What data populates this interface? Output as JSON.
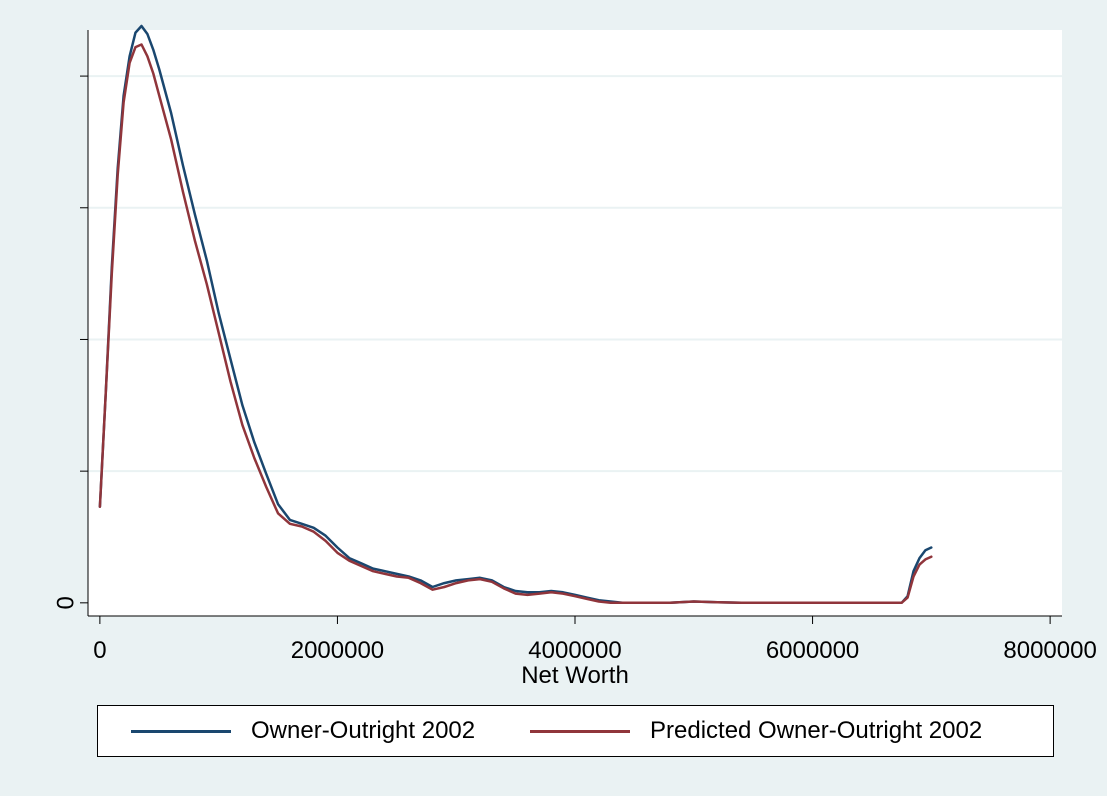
{
  "chart_data": {
    "type": "line",
    "xlabel": "Net Worth",
    "ylabel": "",
    "xlim": [
      -100000,
      8100000
    ],
    "ylim": [
      -0.1,
      4.35
    ],
    "x_ticks": [
      0,
      2000000,
      4000000,
      6000000,
      8000000
    ],
    "x_tick_labels": [
      "0",
      "2000000",
      "4000000",
      "6000000",
      "8000000"
    ],
    "y_ticks": [
      0,
      1,
      2,
      3,
      4
    ],
    "y_tick_labels": [
      "0",
      "",
      "",
      "",
      ""
    ],
    "grid": "horizontal",
    "legend_position": "bottom",
    "series": [
      {
        "name": "Owner-Outright 2002",
        "color": "#1a476f",
        "x": [
          0,
          50000,
          100000,
          150000,
          200000,
          250000,
          300000,
          350000,
          400000,
          450000,
          500000,
          600000,
          700000,
          800000,
          900000,
          1000000,
          1100000,
          1200000,
          1300000,
          1400000,
          1500000,
          1600000,
          1700000,
          1800000,
          1900000,
          2000000,
          2100000,
          2200000,
          2300000,
          2400000,
          2500000,
          2600000,
          2700000,
          2800000,
          2900000,
          3000000,
          3100000,
          3200000,
          3300000,
          3400000,
          3500000,
          3600000,
          3700000,
          3800000,
          3900000,
          4000000,
          4100000,
          4200000,
          4300000,
          4400000,
          4600000,
          4800000,
          5000000,
          5200000,
          5400000,
          5600000,
          5800000,
          6000000,
          6200000,
          6400000,
          6600000,
          6700000,
          6750000,
          6800000,
          6850000,
          6900000,
          6950000,
          7000000
        ],
        "values": [
          0.73,
          1.6,
          2.55,
          3.3,
          3.85,
          4.15,
          4.33,
          4.38,
          4.32,
          4.2,
          4.05,
          3.72,
          3.32,
          2.95,
          2.6,
          2.2,
          1.85,
          1.5,
          1.22,
          0.98,
          0.75,
          0.63,
          0.6,
          0.57,
          0.51,
          0.42,
          0.34,
          0.3,
          0.26,
          0.24,
          0.22,
          0.2,
          0.17,
          0.12,
          0.15,
          0.17,
          0.18,
          0.19,
          0.17,
          0.12,
          0.09,
          0.08,
          0.08,
          0.09,
          0.08,
          0.06,
          0.04,
          0.02,
          0.01,
          0.0,
          0.0,
          0.0,
          0.01,
          0.005,
          0.0,
          0.0,
          0.0,
          0.0,
          0.0,
          0.0,
          0.0,
          0.0,
          0.0,
          0.05,
          0.24,
          0.34,
          0.4,
          0.42
        ]
      },
      {
        "name": "Predicted Owner-Outright 2002",
        "color": "#90353b",
        "x": [
          0,
          50000,
          100000,
          150000,
          200000,
          250000,
          300000,
          350000,
          400000,
          450000,
          500000,
          600000,
          700000,
          800000,
          900000,
          1000000,
          1100000,
          1200000,
          1300000,
          1400000,
          1500000,
          1600000,
          1700000,
          1800000,
          1900000,
          2000000,
          2100000,
          2200000,
          2300000,
          2400000,
          2500000,
          2600000,
          2700000,
          2800000,
          2900000,
          3000000,
          3100000,
          3200000,
          3300000,
          3400000,
          3500000,
          3600000,
          3700000,
          3800000,
          3900000,
          4000000,
          4100000,
          4200000,
          4300000,
          4400000,
          4600000,
          4800000,
          5000000,
          5200000,
          5400000,
          5600000,
          5800000,
          6000000,
          6200000,
          6400000,
          6600000,
          6700000,
          6750000,
          6800000,
          6850000,
          6900000,
          6950000,
          7000000
        ],
        "values": [
          0.73,
          1.6,
          2.5,
          3.25,
          3.8,
          4.1,
          4.22,
          4.24,
          4.15,
          4.02,
          3.85,
          3.52,
          3.12,
          2.75,
          2.42,
          2.05,
          1.68,
          1.35,
          1.1,
          0.88,
          0.68,
          0.6,
          0.58,
          0.54,
          0.47,
          0.38,
          0.32,
          0.28,
          0.24,
          0.22,
          0.2,
          0.19,
          0.15,
          0.1,
          0.12,
          0.15,
          0.17,
          0.18,
          0.16,
          0.11,
          0.07,
          0.06,
          0.07,
          0.08,
          0.07,
          0.05,
          0.03,
          0.01,
          0.0,
          0.0,
          0.0,
          0.0,
          0.01,
          0.005,
          0.0,
          0.0,
          0.0,
          0.0,
          0.0,
          0.0,
          0.0,
          0.0,
          0.0,
          0.04,
          0.2,
          0.29,
          0.33,
          0.35
        ]
      }
    ]
  }
}
